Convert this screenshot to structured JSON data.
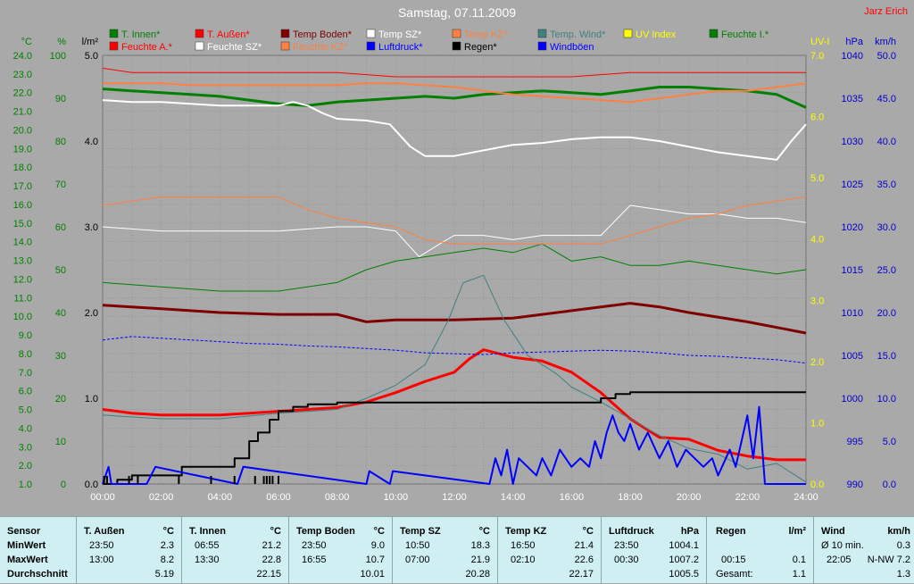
{
  "chart_data": {
    "type": "line",
    "title": "Samstag, 07.11.2009",
    "author": "Jarz Erich",
    "x_range": [
      "00:00",
      "24:00"
    ],
    "x_ticks": [
      "00:00",
      "02:00",
      "04:00",
      "06:00",
      "08:00",
      "10:00",
      "12:00",
      "14:00",
      "16:00",
      "18:00",
      "20:00",
      "22:00",
      "24:00"
    ],
    "axes": {
      "temp": {
        "unit": "°C",
        "min": 1.0,
        "max": 24.0,
        "ticks": [
          "24.0",
          "23.0",
          "22.0",
          "21.0",
          "20.0",
          "19.0",
          "18.0",
          "17.0",
          "16.0",
          "15.0",
          "14.0",
          "13.0",
          "12.0",
          "11.0",
          "10.0",
          "9.0",
          "8.0",
          "7.0",
          "6.0",
          "5.0",
          "4.0",
          "3.0",
          "2.0",
          "1.0"
        ]
      },
      "humidity": {
        "unit": "%",
        "min": 0,
        "max": 100,
        "ticks": [
          "100",
          "90",
          "80",
          "70",
          "60",
          "50",
          "40",
          "30",
          "20",
          "10",
          "0"
        ]
      },
      "rain": {
        "unit": "l/m²",
        "min": 0.0,
        "max": 5.0,
        "ticks": [
          "5.0",
          "4.0",
          "3.0",
          "2.0",
          "1.0",
          "0.0"
        ]
      },
      "uv": {
        "unit": "UV-I",
        "min": 0.0,
        "max": 7.0,
        "ticks": [
          "7.0",
          "6.0",
          "5.0",
          "4.0",
          "3.0",
          "2.0",
          "1.0",
          "0.0"
        ]
      },
      "pressure": {
        "unit": "hPa",
        "min": 990,
        "max": 1040,
        "ticks": [
          "1040",
          "1035",
          "1030",
          "1025",
          "1020",
          "1015",
          "1010",
          "1005",
          "1000",
          "995",
          "990"
        ]
      },
      "wind": {
        "unit": "km/h",
        "min": 0.0,
        "max": 50.0,
        "ticks": [
          "50.0",
          "45.0",
          "40.0",
          "35.0",
          "30.0",
          "25.0",
          "20.0",
          "15.0",
          "10.0",
          "5.0",
          "0.0"
        ]
      }
    },
    "legend": [
      {
        "name": "T. Innen*",
        "color": "#007f00"
      },
      {
        "name": "T. Außen*",
        "color": "#ff0000"
      },
      {
        "name": "Temp Boden*",
        "color": "#7f0000"
      },
      {
        "name": "Temp SZ*",
        "color": "#ffffff"
      },
      {
        "name": "Temp KZ*",
        "color": "#ff8040"
      },
      {
        "name": "Temp. Wind*",
        "color": "#408080"
      },
      {
        "name": "UV Index",
        "color": "#ffff00"
      },
      {
        "name": "Feuchte I.*",
        "color": "#007f00"
      },
      {
        "name": "Feuchte A.*",
        "color": "#ff0000"
      },
      {
        "name": "Feuchte SZ*",
        "color": "#ffffff"
      },
      {
        "name": "Feuchte KZ*",
        "color": "#ff8040"
      },
      {
        "name": "Luftdruck*",
        "color": "#0000ff"
      },
      {
        "name": "Regen*",
        "color": "#000000"
      },
      {
        "name": "Windböen",
        "color": "#0000ff"
      }
    ],
    "series": [
      {
        "name": "T. Innen*",
        "axis": "temp",
        "color": "#007f00",
        "width": 3,
        "x": [
          0,
          1,
          2,
          3,
          4,
          5,
          6,
          7,
          8,
          9,
          10,
          11,
          12,
          13,
          14,
          15,
          16,
          17,
          18,
          19,
          20,
          21,
          22,
          23,
          24
        ],
        "y": [
          22.2,
          22.1,
          22.0,
          21.9,
          21.8,
          21.6,
          21.4,
          21.3,
          21.5,
          21.6,
          21.7,
          21.8,
          21.7,
          21.9,
          22.0,
          22.1,
          22.0,
          21.9,
          22.1,
          22.3,
          22.3,
          22.2,
          22.1,
          21.9,
          21.2
        ]
      },
      {
        "name": "T. Außen*",
        "axis": "temp",
        "color": "#ff0000",
        "width": 3,
        "x": [
          0,
          1,
          2,
          3,
          4,
          5,
          6,
          7,
          8,
          9,
          10,
          11,
          12,
          12.5,
          13,
          14,
          15,
          16,
          17,
          18,
          19,
          20,
          21,
          22,
          23,
          24
        ],
        "y": [
          5.0,
          4.8,
          4.7,
          4.7,
          4.7,
          4.8,
          4.9,
          5.0,
          5.1,
          5.4,
          5.9,
          6.5,
          7.0,
          7.7,
          8.2,
          7.8,
          7.6,
          7.0,
          5.9,
          4.5,
          3.5,
          3.4,
          2.8,
          2.5,
          2.3,
          2.3
        ]
      },
      {
        "name": "Temp Boden*",
        "axis": "temp",
        "color": "#7f0000",
        "width": 3,
        "x": [
          0,
          2,
          4,
          6,
          8,
          9,
          10,
          12,
          14,
          16,
          17,
          18,
          19,
          20,
          22,
          23,
          24
        ],
        "y": [
          10.6,
          10.4,
          10.2,
          10.1,
          10.1,
          9.7,
          9.8,
          9.8,
          9.9,
          10.3,
          10.5,
          10.7,
          10.5,
          10.2,
          9.7,
          9.4,
          9.1
        ]
      },
      {
        "name": "Temp SZ*",
        "axis": "temp",
        "color": "#ffffff",
        "width": 2,
        "x": [
          0,
          1,
          2,
          3,
          4,
          5,
          6,
          6.5,
          7,
          7.5,
          8,
          9,
          9.8,
          10.5,
          11,
          12,
          13,
          14,
          15,
          16,
          17,
          18,
          19,
          20,
          21,
          22,
          23,
          23.5,
          24
        ],
        "y": [
          21.6,
          21.5,
          21.5,
          21.4,
          21.3,
          21.3,
          21.3,
          21.5,
          21.3,
          20.9,
          20.6,
          20.5,
          20.3,
          19.1,
          18.6,
          18.6,
          18.9,
          19.2,
          19.3,
          19.5,
          19.6,
          19.6,
          19.4,
          19.1,
          18.8,
          18.6,
          18.4,
          19.4,
          20.3
        ]
      },
      {
        "name": "Temp KZ*",
        "axis": "temp",
        "color": "#ff8040",
        "width": 2,
        "x": [
          0,
          1,
          2,
          3,
          4,
          5,
          6,
          7,
          8,
          9,
          10,
          11,
          12,
          13,
          14,
          15,
          16,
          17,
          18,
          19,
          20,
          21,
          22,
          23,
          24
        ],
        "y": [
          22.5,
          22.5,
          22.5,
          22.4,
          22.4,
          22.4,
          22.4,
          22.4,
          22.4,
          22.5,
          22.5,
          22.4,
          22.3,
          22.1,
          21.9,
          21.8,
          21.7,
          21.6,
          21.5,
          21.7,
          21.9,
          22.1,
          22.1,
          22.3,
          22.5
        ]
      },
      {
        "name": "Temp. Wind*",
        "axis": "temp",
        "color": "#408080",
        "width": 1,
        "x": [
          0,
          2,
          4,
          6,
          8,
          9,
          10,
          11,
          11.8,
          12.3,
          13,
          13.7,
          14.5,
          15.5,
          16,
          17,
          18,
          19,
          20,
          21,
          22,
          23,
          24
        ],
        "y": [
          4.7,
          4.5,
          4.5,
          4.8,
          5.0,
          5.6,
          6.3,
          7.4,
          9.8,
          11.8,
          12.2,
          9.8,
          7.9,
          6.9,
          6.2,
          5.4,
          4.5,
          3.6,
          2.9,
          2.6,
          1.8,
          2.1,
          1.1
        ]
      },
      {
        "name": "Feuchte I.*",
        "axis": "humidity",
        "color": "#007f00",
        "width": 1,
        "x": [
          0,
          2,
          4,
          6,
          8,
          9,
          10,
          11,
          12,
          13,
          14,
          15,
          16,
          17,
          18,
          19,
          20,
          21,
          22,
          23,
          24
        ],
        "y": [
          47,
          46,
          45,
          45,
          47,
          50,
          52,
          53,
          54,
          55,
          54,
          56,
          52,
          53,
          51,
          51,
          52,
          51,
          50,
          49,
          50
        ]
      },
      {
        "name": "Feuchte A.*",
        "axis": "humidity",
        "color": "#ff0000",
        "width": 1,
        "x": [
          0,
          1,
          2,
          4,
          6,
          8,
          10,
          12,
          14,
          16,
          18,
          20,
          22,
          23,
          24
        ],
        "y": [
          97,
          96,
          96,
          96,
          96,
          96,
          95,
          95,
          95,
          95,
          96,
          96,
          96,
          96,
          96
        ]
      },
      {
        "name": "Feuchte SZ*",
        "axis": "humidity",
        "color": "#ffffff",
        "width": 1,
        "x": [
          0,
          2,
          4,
          6,
          8,
          9,
          10,
          10.8,
          11.5,
          12,
          13,
          14,
          15,
          16,
          17,
          18,
          19,
          20,
          21,
          22,
          23,
          24
        ],
        "y": [
          60,
          59,
          59,
          59,
          60,
          60,
          59,
          53,
          56,
          58,
          58,
          57,
          58,
          58,
          58,
          65,
          64,
          63,
          63,
          62,
          62,
          61
        ]
      },
      {
        "name": "Feuchte KZ*",
        "axis": "humidity",
        "color": "#ff8040",
        "width": 1,
        "x": [
          0,
          2,
          3,
          4,
          6,
          7,
          8,
          9,
          10,
          11,
          12,
          13,
          14,
          15,
          16,
          17,
          18,
          19,
          20,
          21,
          22,
          23,
          24
        ],
        "y": [
          65,
          67,
          67,
          67,
          67,
          64,
          62,
          61,
          60,
          57,
          56,
          56,
          56,
          56,
          56,
          56,
          58,
          60,
          62,
          63,
          65,
          66,
          67
        ]
      },
      {
        "name": "Luftdruck*",
        "axis": "pressure",
        "color": "#0000ff",
        "width": 1,
        "dashed": true,
        "x": [
          0,
          1,
          2,
          3,
          4,
          5,
          6,
          7,
          8,
          9,
          10,
          11,
          12,
          13,
          14,
          15,
          16,
          17,
          18,
          19,
          20,
          21,
          22,
          23,
          24
        ],
        "y": [
          1006.8,
          1007.2,
          1007.0,
          1006.8,
          1006.6,
          1006.4,
          1006.3,
          1006.1,
          1006.0,
          1005.8,
          1005.6,
          1005.3,
          1005.2,
          1005.1,
          1005.3,
          1005.4,
          1005.5,
          1005.6,
          1005.5,
          1005.3,
          1005.0,
          1004.9,
          1004.7,
          1004.5,
          1004.1
        ]
      },
      {
        "name": "Regen*",
        "axis": "rain",
        "color": "#000000",
        "width": 2,
        "step": true,
        "x": [
          0,
          0.5,
          1,
          2,
          2.7,
          3,
          3.7,
          4.5,
          5,
          5.3,
          5.7,
          6,
          6.5,
          7,
          8,
          10,
          12,
          14,
          16,
          16.8,
          17,
          17.5,
          18,
          20,
          24
        ],
        "y": [
          0.0,
          0.05,
          0.1,
          0.1,
          0.2,
          0.2,
          0.2,
          0.3,
          0.5,
          0.6,
          0.75,
          0.85,
          0.9,
          0.93,
          0.95,
          0.95,
          0.95,
          0.95,
          0.95,
          0.95,
          1.0,
          1.05,
          1.07,
          1.07,
          1.07
        ]
      },
      {
        "name": "Windböen",
        "axis": "wind",
        "color": "#0000ff",
        "width": 2,
        "x": [
          0,
          0.2,
          0.3,
          1.5,
          1.8,
          4.6,
          4.8,
          9.0,
          9.1,
          9.8,
          9.9,
          13.2,
          13.4,
          13.6,
          13.8,
          14.0,
          14.2,
          14.5,
          14.8,
          15.0,
          15.3,
          15.6,
          16.0,
          16.3,
          16.6,
          16.8,
          17.0,
          17.2,
          17.4,
          17.6,
          17.8,
          18.0,
          18.3,
          18.6,
          19.0,
          19.3,
          19.6,
          19.9,
          20.2,
          20.5,
          20.8,
          21.0,
          21.4,
          21.6,
          21.8,
          22.0,
          22.2,
          22.4,
          22.6,
          23.0,
          23.5,
          24.0
        ],
        "y": [
          0,
          2,
          0,
          0,
          2,
          0,
          2,
          0,
          1.5,
          0,
          1.5,
          0,
          3,
          1,
          4,
          0,
          3,
          2,
          1,
          3,
          1,
          4,
          2,
          3,
          2,
          5,
          3,
          6,
          8,
          6,
          5,
          7,
          4,
          6,
          3,
          5,
          2,
          4,
          3,
          2,
          3,
          1,
          4,
          2,
          5,
          8,
          3,
          9,
          0,
          0,
          0,
          0
        ]
      }
    ],
    "summary": [
      {
        "sensor": "T. Außen",
        "unit": "°C",
        "min_time": "23:50",
        "min": "2.3",
        "max_time": "13:00",
        "max": "8.2",
        "avg": "5.19"
      },
      {
        "sensor": "T. Innen",
        "unit": "°C",
        "min_time": "06:55",
        "min": "21.2",
        "max_time": "13:30",
        "max": "22.8",
        "avg": "22.15"
      },
      {
        "sensor": "Temp Boden",
        "unit": "°C",
        "min_time": "23:50",
        "min": "9.0",
        "max_time": "16:55",
        "max": "10.7",
        "avg": "10.01"
      },
      {
        "sensor": "Temp SZ",
        "unit": "°C",
        "min_time": "10:50",
        "min": "18.3",
        "max_time": "07:00",
        "max": "21.9",
        "avg": "20.28"
      },
      {
        "sensor": "Temp KZ",
        "unit": "°C",
        "min_time": "16:50",
        "min": "21.4",
        "max_time": "02:10",
        "max": "22.6",
        "avg": "22.17"
      },
      {
        "sensor": "Luftdruck",
        "unit": "hPa",
        "min_time": "23:50",
        "min": "1004.1",
        "max_time": "00:30",
        "max": "1007.2",
        "avg": "1005.5"
      }
    ]
  },
  "table": {
    "row_labels": [
      "Sensor",
      "MinWert",
      "MaxWert",
      "Durchschnitt"
    ],
    "regen": {
      "title": "Regen",
      "unit": "l/m²",
      "min_time": "00:15",
      "min": "0.1",
      "total_label": "Gesamt:",
      "total": "1.1"
    },
    "wind": {
      "title": "Wind",
      "unit": "km/h",
      "avg10_label": "Ø 10 min.",
      "avg10": "0.3",
      "max_time": "22:05",
      "max": "N-NW 7.2",
      "avg": "1.3"
    }
  }
}
